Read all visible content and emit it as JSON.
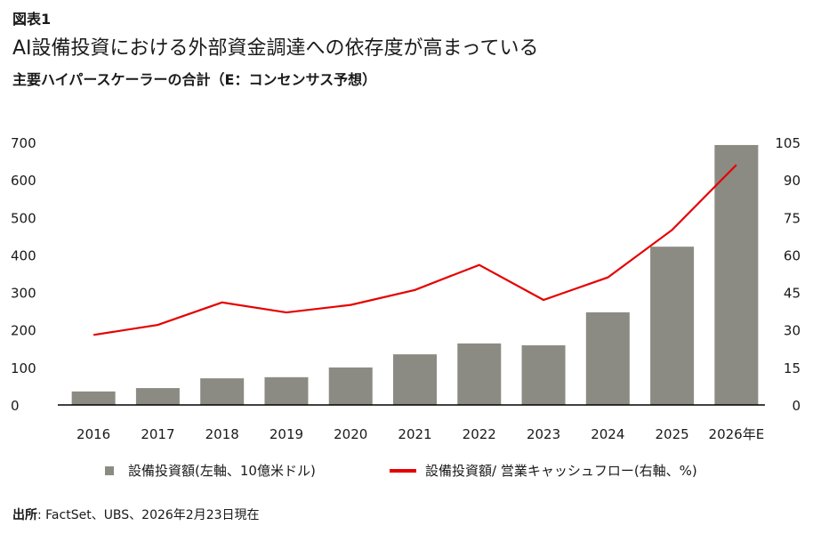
{
  "header": {
    "figure_label": "図表1",
    "title": "AI設備投資における外部資金調達への依存度が高まっている",
    "subtitle": "主要ハイパースケーラーの合計（E：コンセンサス予想）"
  },
  "colors": {
    "bar": "#8c8b83",
    "line": "#e60000",
    "axis": "#000000"
  },
  "chart_data": {
    "type": "bar",
    "title": "AI設備投資における外部資金調達への依存度が高まっている",
    "subtitle": "主要ハイパースケーラーの合計（E：コンセンサス予想）",
    "categories": [
      "2016",
      "2017",
      "2018",
      "2019",
      "2020",
      "2021",
      "2022",
      "2023",
      "2024",
      "2025",
      "2026年E"
    ],
    "series": [
      {
        "name": "設備投資額(左軸、10億米ドル)",
        "type": "bar",
        "axis": "left",
        "values": [
          36,
          45,
          71,
          74,
          100,
          135,
          164,
          159,
          247,
          422,
          693
        ]
      },
      {
        "name": "設備投資額/ 営業キャッシュフロー(右軸、%)",
        "type": "line",
        "axis": "right",
        "values": [
          28,
          32,
          41,
          37,
          40,
          46,
          56,
          42,
          51,
          70,
          96
        ]
      }
    ],
    "left_axis": {
      "min": 0,
      "max": 700,
      "ticks": [
        "0",
        "100",
        "200",
        "300",
        "400",
        "500",
        "600",
        "700"
      ]
    },
    "right_axis": {
      "min": 0,
      "max": 105,
      "ticks": [
        "0",
        "15",
        "30",
        "45",
        "60",
        "75",
        "90",
        "105"
      ]
    },
    "grid": false,
    "legend_position": "bottom"
  },
  "legend": {
    "bar_label": "設備投資額(左軸、10億米ドル)",
    "line_label": "設備投資額/ 営業キャッシュフロー(右軸、%)"
  },
  "source": {
    "prefix": "出所",
    "text": ": FactSet、UBS、2026年2月23日現在"
  }
}
